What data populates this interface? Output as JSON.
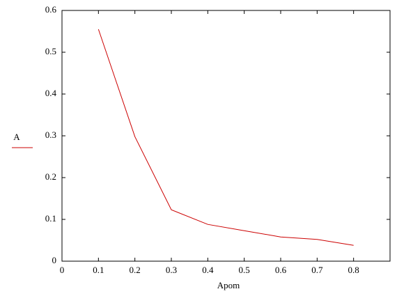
{
  "chart_data": {
    "type": "line",
    "x_label": "Apom",
    "x": [
      0.1,
      0.2,
      0.3,
      0.4,
      0.5,
      0.6,
      0.7,
      0.8
    ],
    "series": [
      {
        "name": "A",
        "color": "#cc0000",
        "values": [
          0.555,
          0.298,
          0.123,
          0.088,
          0.073,
          0.058,
          0.052,
          0.038
        ]
      }
    ],
    "xlim": [
      0,
      0.9
    ],
    "xticks": [
      0,
      0.1,
      0.2,
      0.3,
      0.4,
      0.5,
      0.6,
      0.7,
      0.8
    ],
    "ylim": [
      0,
      0.6
    ],
    "yticks": [
      0,
      0.1,
      0.2,
      0.3,
      0.4,
      0.5,
      0.6
    ],
    "grid": false
  }
}
